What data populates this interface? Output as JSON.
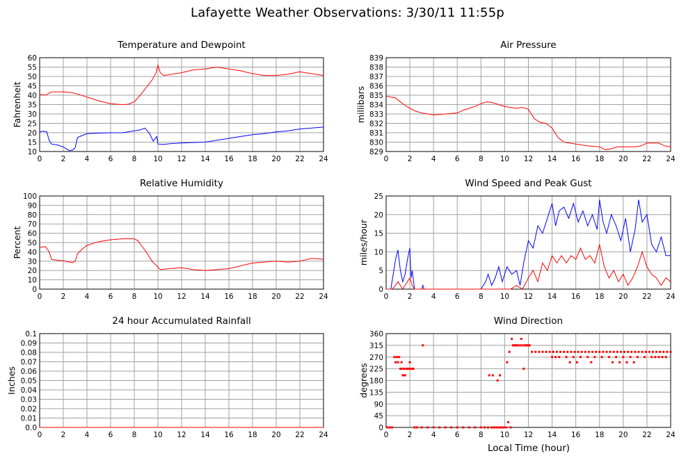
{
  "page_title": "Lafayette Weather Observations: 3/30/11 11:55p",
  "x_axis_label": "Local Time (hour)",
  "chart_data": [
    {
      "id": "temp",
      "type": "line",
      "title": "Temperature and Dewpoint",
      "ylabel": "Fahrenheit",
      "xlim": [
        0,
        24
      ],
      "ylim": [
        10,
        60
      ],
      "xticks": [
        0,
        2,
        4,
        6,
        8,
        10,
        12,
        14,
        16,
        18,
        20,
        22,
        24
      ],
      "yticks": [
        10,
        15,
        20,
        25,
        30,
        35,
        40,
        45,
        50,
        55,
        60
      ],
      "grid": true,
      "series": [
        {
          "color": "#ff0000",
          "x": [
            0,
            0.5,
            1,
            1.5,
            2,
            2.5,
            3,
            4,
            5,
            6,
            7,
            7.5,
            8,
            8.5,
            9,
            9.5,
            9.85,
            10,
            10.2,
            10.5,
            11,
            12,
            13,
            14,
            15,
            16,
            17,
            18,
            19,
            20,
            21,
            22,
            23,
            24
          ],
          "values": [
            40.5,
            40,
            41.8,
            41.8,
            41.8,
            41.5,
            41.0,
            39.0,
            37.0,
            35.5,
            35.0,
            35.2,
            36.5,
            40,
            44,
            48,
            52,
            56,
            52,
            50.5,
            51,
            52,
            53.5,
            54,
            55,
            54,
            53,
            51.5,
            50.5,
            50.5,
            51.2,
            52.5,
            51.5,
            50.5
          ]
        },
        {
          "color": "#0000ff",
          "x": [
            0,
            0.3,
            0.6,
            0.8,
            1,
            1.5,
            2,
            2.5,
            2.8,
            3,
            3.2,
            4,
            5,
            6,
            7,
            8,
            8.5,
            8.9,
            9.3,
            9.6,
            9.9,
            10,
            10.5,
            11,
            12,
            13,
            14,
            15,
            16,
            17,
            18,
            19,
            20,
            21,
            22,
            23,
            24
          ],
          "values": [
            20.5,
            20.8,
            20.5,
            16,
            14,
            13.5,
            12.5,
            10.5,
            10.8,
            12,
            17.5,
            19.5,
            19.8,
            20,
            20,
            21,
            21.5,
            22.5,
            19.5,
            15.5,
            18,
            14,
            13.8,
            14.2,
            14.5,
            14.8,
            15,
            16,
            17,
            18,
            19,
            19.5,
            20.5,
            21,
            22,
            22.5,
            23
          ]
        }
      ]
    },
    {
      "id": "pressure",
      "type": "line",
      "title": "Air Pressure",
      "ylabel": "millibars",
      "xlim": [
        0,
        24
      ],
      "ylim": [
        829,
        839
      ],
      "xticks": [
        0,
        2,
        4,
        6,
        8,
        10,
        12,
        14,
        16,
        18,
        20,
        22,
        24
      ],
      "yticks": [
        829,
        830,
        831,
        832,
        833,
        834,
        835,
        836,
        837,
        838,
        839
      ],
      "grid": true,
      "series": [
        {
          "color": "#ff0000",
          "x": [
            0,
            0.8,
            1,
            1.5,
            2,
            2.5,
            3,
            3.5,
            4,
            5,
            6,
            6.5,
            7,
            7.5,
            8,
            8.5,
            9,
            9.5,
            10,
            11,
            11.5,
            12,
            12.5,
            13,
            13.5,
            14,
            14.5,
            15,
            16,
            17,
            18,
            18.5,
            19,
            19.5,
            20,
            21,
            21.5,
            22,
            23,
            23.5,
            24
          ],
          "values": [
            834.9,
            834.7,
            834.5,
            834.0,
            833.6,
            833.3,
            833.1,
            833.0,
            832.9,
            833.0,
            833.1,
            833.4,
            833.6,
            833.8,
            834.1,
            834.3,
            834.2,
            834.0,
            833.8,
            833.6,
            833.7,
            833.5,
            832.5,
            832.1,
            832.0,
            831.5,
            830.5,
            830.0,
            829.8,
            829.6,
            829.5,
            829.2,
            829.3,
            829.5,
            829.5,
            829.5,
            829.6,
            829.9,
            829.9,
            829.6,
            829.5
          ]
        }
      ]
    },
    {
      "id": "humidity",
      "type": "line",
      "title": "Relative Humidity",
      "ylabel": "Percent",
      "xlim": [
        0,
        24
      ],
      "ylim": [
        0,
        100
      ],
      "xticks": [
        0,
        2,
        4,
        6,
        8,
        10,
        12,
        14,
        16,
        18,
        20,
        22,
        24
      ],
      "yticks": [
        0,
        10,
        20,
        30,
        40,
        50,
        60,
        70,
        80,
        90,
        100
      ],
      "grid": true,
      "series": [
        {
          "color": "#ff0000",
          "x": [
            0,
            0.5,
            0.8,
            1,
            1.5,
            2,
            2.5,
            2.8,
            3.0,
            3.2,
            3.6,
            4,
            5,
            6,
            7,
            8,
            8.3,
            8.6,
            9,
            9.5,
            9.9,
            10.2,
            11,
            12,
            13,
            14,
            15,
            16,
            17,
            18,
            19,
            20,
            21,
            22,
            23,
            24
          ],
          "values": [
            45,
            45.5,
            40,
            32,
            31,
            30.5,
            29,
            28.5,
            30,
            38,
            43,
            47,
            51,
            53,
            54,
            54,
            52,
            47,
            40,
            30,
            25,
            21,
            22,
            23,
            21,
            20,
            21,
            22,
            25,
            28,
            29,
            30,
            29,
            30,
            33,
            32
          ]
        }
      ]
    },
    {
      "id": "wind",
      "type": "line",
      "title": "Wind Speed and Peak Gust",
      "ylabel": "miles/hour",
      "xlim": [
        0,
        24
      ],
      "ylim": [
        0,
        25
      ],
      "xticks": [
        0,
        2,
        4,
        6,
        8,
        10,
        12,
        14,
        16,
        18,
        20,
        22,
        24
      ],
      "yticks": [
        0,
        5,
        10,
        15,
        20,
        25
      ],
      "grid": true,
      "series": [
        {
          "color": "#0000ff",
          "x": [
            0,
            0.4,
            0.6,
            0.8,
            1,
            1.2,
            1.4,
            1.6,
            1.8,
            2.0,
            2.1,
            2.2,
            2.4,
            2.6,
            3,
            3.1,
            3.2,
            4,
            6,
            8,
            8.4,
            8.6,
            8.9,
            9.2,
            9.5,
            9.8,
            10.2,
            10.6,
            11,
            11.3,
            11.6,
            12,
            12.4,
            12.8,
            13.2,
            13.6,
            14,
            14.3,
            14.6,
            15,
            15.4,
            15.8,
            16.2,
            16.6,
            17,
            17.4,
            17.8,
            18,
            18.3,
            18.6,
            19,
            19.4,
            19.8,
            20.2,
            20.6,
            21,
            21.3,
            21.6,
            22,
            22.4,
            22.8,
            23.2,
            23.6,
            24
          ],
          "values": [
            0,
            0,
            4,
            8,
            10.5,
            5,
            2,
            4,
            8,
            11,
            3,
            5,
            0,
            0,
            0,
            1,
            0,
            0,
            0,
            0,
            2,
            4,
            1,
            3,
            6,
            2,
            6,
            4,
            5,
            1,
            7,
            13,
            11,
            17,
            15,
            19,
            23,
            17,
            21,
            22,
            19,
            23,
            18,
            21,
            17,
            20,
            16,
            24,
            18,
            15,
            20,
            17,
            13,
            19,
            10,
            16,
            24,
            18,
            20,
            12,
            10,
            14,
            9,
            9
          ]
        },
        {
          "color": "#ff0000",
          "x": [
            0,
            0.5,
            0.8,
            1,
            1.2,
            1.4,
            1.6,
            1.8,
            2.0,
            2.2,
            2.4,
            3,
            4,
            6,
            8,
            10,
            10.5,
            11,
            11.5,
            12,
            12.4,
            12.8,
            13.2,
            13.6,
            14,
            14.4,
            14.8,
            15.2,
            15.6,
            16,
            16.4,
            16.8,
            17.2,
            17.6,
            18,
            18.4,
            18.8,
            19.2,
            19.6,
            20,
            20.4,
            20.8,
            21.2,
            21.6,
            22,
            22.4,
            22.8,
            23.2,
            23.6,
            24
          ],
          "values": [
            0,
            0,
            1,
            2,
            1,
            0,
            1,
            2,
            3,
            1,
            0,
            0,
            0,
            0,
            0,
            0,
            0,
            1,
            0,
            3,
            5,
            2,
            7,
            5,
            9,
            7,
            9,
            7,
            9,
            8,
            11,
            8,
            9,
            7,
            12,
            6,
            3,
            5,
            2,
            4,
            1,
            3,
            6,
            10,
            6,
            4,
            3,
            1,
            3,
            2
          ]
        }
      ]
    },
    {
      "id": "rain",
      "type": "line",
      "title": "24 hour Accumulated Rainfall",
      "ylabel": "Inches",
      "xlim": [
        0,
        24
      ],
      "ylim": [
        0,
        0.1
      ],
      "xticks": [
        0,
        2,
        4,
        6,
        8,
        10,
        12,
        14,
        16,
        18,
        20,
        22,
        24
      ],
      "yticks": [
        0.0,
        0.01,
        0.02,
        0.03,
        0.04,
        0.05,
        0.06,
        0.07,
        0.08,
        0.09,
        0.1
      ],
      "ytick_labels": [
        "0.0",
        "0.01",
        "0.02",
        "0.03",
        "0.04",
        "0.05",
        "0.06",
        "0.07",
        "0.08",
        "0.09",
        "0.1"
      ],
      "grid": true,
      "series": [
        {
          "color": "#ff0000",
          "x": [
            0,
            24
          ],
          "values": [
            0,
            0
          ]
        }
      ]
    },
    {
      "id": "direction",
      "type": "scatter",
      "title": "Wind Direction",
      "ylabel": "degrees",
      "xlim": [
        0,
        24
      ],
      "ylim": [
        0,
        360
      ],
      "xticks": [
        0,
        2,
        4,
        6,
        8,
        10,
        12,
        14,
        16,
        18,
        20,
        22,
        24
      ],
      "yticks": [
        0,
        45,
        90,
        135,
        180,
        225,
        270,
        315,
        360
      ],
      "grid": true,
      "series": [
        {
          "color": "#ff0000",
          "x": [
            0.1,
            0.3,
            0.5,
            0.7,
            0.9,
            1.1,
            1.3,
            1.5,
            1.7,
            1.9,
            2.1,
            2.3,
            0.8,
            1.0,
            1.2,
            1.4,
            1.6,
            1.8,
            2.0,
            2.2,
            2.4,
            3.1,
            1.3,
            1.5,
            2.6,
            3.0,
            3.5,
            4.0,
            4.5,
            5.0,
            5.5,
            6.0,
            6.5,
            7.0,
            7.5,
            8.0,
            8.3,
            8.6,
            8.9,
            9.1,
            9.3,
            9.5,
            9.7,
            9.9,
            10.1,
            10.3,
            10.5,
            10.7,
            10.9,
            11.1,
            11.3,
            11.5,
            11.7,
            11.9,
            12.1,
            8.7,
            9.0,
            9.4,
            9.6,
            10.2,
            10.4,
            10.6,
            11.4,
            10.8,
            11.0,
            11.6,
            11.8,
            12.0,
            12.3,
            12.6,
            12.9,
            13.2,
            13.5,
            13.8,
            14.1,
            14.4,
            14.7,
            15.0,
            15.3,
            15.6,
            15.9,
            16.2,
            16.5,
            16.8,
            17.1,
            17.4,
            17.7,
            18.0,
            18.3,
            18.6,
            18.9,
            19.2,
            19.5,
            19.8,
            20.1,
            20.4,
            20.7,
            21.0,
            21.3,
            21.6,
            21.9,
            22.2,
            22.5,
            22.8,
            23.1,
            23.4,
            23.7,
            24.0,
            14.0,
            14.3,
            14.6,
            15.2,
            15.8,
            16.4,
            17.0,
            17.6,
            18.2,
            18.8,
            19.4,
            20.0,
            20.6,
            21.2,
            21.8,
            22.4,
            23.0,
            23.6,
            15.5,
            16.1,
            17.3,
            19.1,
            19.7,
            20.3,
            20.9,
            22.7,
            23.3
          ],
          "values": [
            0,
            0,
            0,
            270,
            270,
            270,
            250,
            225,
            225,
            225,
            225,
            225,
            250,
            250,
            225,
            200,
            200,
            225,
            250,
            225,
            0,
            315,
            225,
            200,
            0,
            0,
            0,
            0,
            0,
            0,
            0,
            0,
            0,
            0,
            0,
            0,
            0,
            0,
            0,
            0,
            0,
            0,
            0,
            0,
            0,
            20,
            0,
            315,
            315,
            315,
            315,
            315,
            315,
            315,
            315,
            200,
            200,
            180,
            200,
            250,
            290,
            340,
            340,
            315,
            315,
            225,
            315,
            315,
            290,
            290,
            290,
            290,
            290,
            290,
            290,
            290,
            290,
            290,
            290,
            290,
            290,
            290,
            290,
            290,
            290,
            290,
            290,
            290,
            290,
            290,
            290,
            290,
            290,
            290,
            290,
            290,
            290,
            290,
            290,
            290,
            290,
            290,
            290,
            290,
            290,
            290,
            290,
            290,
            270,
            270,
            270,
            270,
            270,
            270,
            270,
            270,
            270,
            270,
            270,
            270,
            270,
            270,
            270,
            270,
            270,
            270,
            250,
            250,
            250,
            250,
            250,
            250,
            250,
            270,
            270
          ]
        }
      ]
    }
  ]
}
